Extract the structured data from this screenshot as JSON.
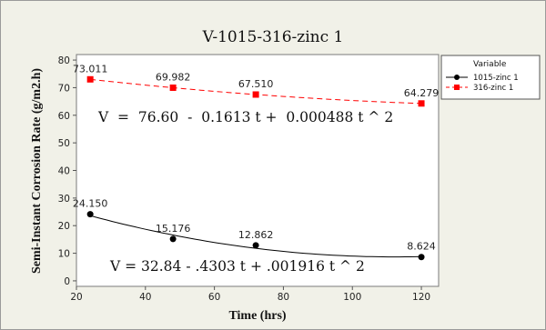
{
  "chart_data": {
    "type": "scatter",
    "title": "V-1015-316-zinc 1",
    "xlabel": "Time (hrs)",
    "ylabel": "Semi-Instant Corrosion Rate (g/m2.h)",
    "xlim": [
      20,
      125
    ],
    "ylim": [
      -2,
      82
    ],
    "xticks": [
      20,
      40,
      60,
      80,
      100,
      120
    ],
    "yticks": [
      0,
      10,
      20,
      30,
      40,
      50,
      60,
      70,
      80
    ],
    "grid": false,
    "legend_position": "right",
    "legend_title": "Variable",
    "series": [
      {
        "name": "1015-zinc 1",
        "color": "#000000",
        "marker": "circle",
        "line_style": "solid",
        "x": [
          24,
          48,
          72,
          120
        ],
        "y": [
          24.15,
          15.176,
          12.862,
          8.624
        ],
        "labels": [
          "24.150",
          "15.176",
          "12.862",
          "8.624"
        ],
        "fit": {
          "a": 32.84,
          "b": -0.4303,
          "c": 0.001916
        },
        "equation": "V = 32.84 - .4303 t + .001916 t ^ 2"
      },
      {
        "name": "316-zinc 1",
        "color": "#ff0000",
        "marker": "square",
        "line_style": "dashed",
        "x": [
          24,
          48,
          72,
          120
        ],
        "y": [
          73.011,
          69.982,
          67.51,
          64.279
        ],
        "labels": [
          "73.011",
          "69.982",
          "67.510",
          "64.279"
        ],
        "fit": {
          "a": 76.6,
          "b": -0.1613,
          "c": 0.000488
        },
        "equation": "V  =  76.60  -  0.1613 t +  0.000488 t ^ 2"
      }
    ]
  }
}
